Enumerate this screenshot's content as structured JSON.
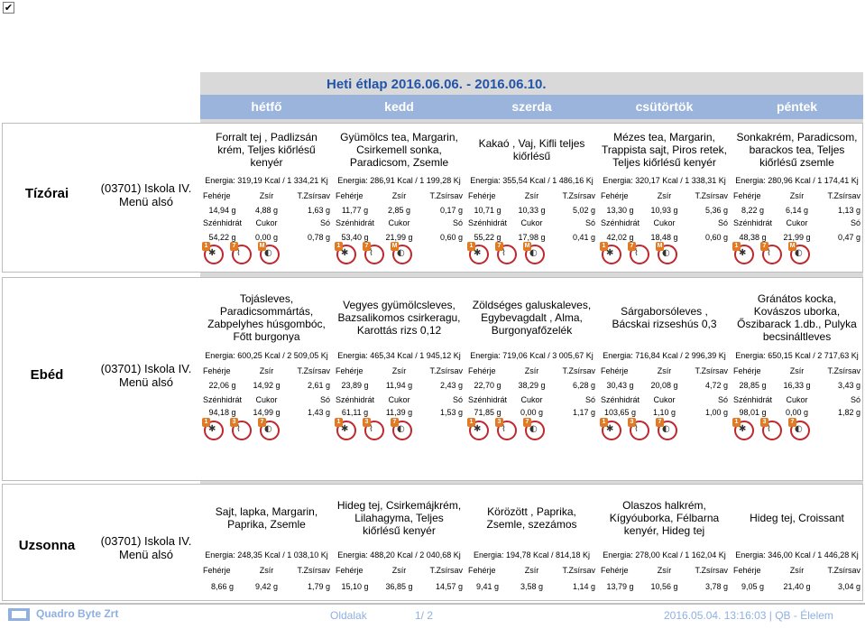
{
  "title": "Heti étlap 2016.06.06. - 2016.06.10.",
  "days": [
    "hétfő",
    "kedd",
    "szerda",
    "csütörtök",
    "péntek"
  ],
  "nutrient_headers": [
    "Fehérje",
    "Zsír",
    "T.Zsírsav",
    "Szénhidrát",
    "Cukor",
    "Só"
  ],
  "meals": [
    {
      "name": "Tízórai",
      "provider": "(03701) Iskola IV. Menü alsó",
      "menus": [
        "Forralt tej , Padlizsán krém, Teljes kiőrlésű kenyér",
        "Gyümölcs tea, Margarin, Csirkemell sonka, Paradicsom, Zsemle",
        "Kakaó , Vaj, Kifli teljes kiőrlésű",
        "Mézes tea, Margarin, Trappista sajt, Piros retek, Teljes kiőrlésű kenyér",
        "Sonkakrém, Paradicsom, barackos tea, Teljes kiőrlésű zsemle"
      ],
      "energy": [
        "Energia: 319,19 Kcal / 1 334,21 Kj",
        "Energia: 286,91 Kcal / 1 199,28 Kj",
        "Energia: 355,54 Kcal / 1 486,16 Kj",
        "Energia: 320,17 Kcal / 1 338,31 Kj",
        "Energia: 280,96 Kcal / 1 174,41 Kj"
      ],
      "values1": [
        [
          "14,94 g",
          "4,88 g",
          "1,63 g"
        ],
        [
          "11,77 g",
          "2,85 g",
          "0,17 g"
        ],
        [
          "10,71 g",
          "10,33 g",
          "5,02 g"
        ],
        [
          "13,30 g",
          "10,93 g",
          "5,36 g"
        ],
        [
          "8,22 g",
          "6,14 g",
          "1,13 g"
        ]
      ],
      "values2": [
        [
          "54,22 g",
          "0,00 g",
          "0,78 g"
        ],
        [
          "53,40 g",
          "21,99 g",
          "0,60 g"
        ],
        [
          "55,22 g",
          "17,98 g",
          "0,41 g"
        ],
        [
          "42,02 g",
          "18,48 g",
          "0,60 g"
        ],
        [
          "48,38 g",
          "21,99 g",
          "0,47 g"
        ]
      ],
      "allergens": [
        [
          "1",
          "7",
          "M"
        ],
        [
          "1",
          "7",
          "M"
        ],
        [
          "1",
          "7",
          "M"
        ],
        [
          "1",
          "7",
          "M"
        ],
        [
          "1",
          "7",
          "M"
        ]
      ]
    },
    {
      "name": "Ebéd",
      "provider": "(03701) Iskola IV. Menü alsó",
      "menus": [
        "Tojásleves, Paradicsommártás, Zabpelyhes húsgombóc, Főtt burgonya",
        "Vegyes gyümölcsleves, Bazsalikomos csirkeragu, Karottás rizs 0,12",
        "Zöldséges galuskaleves, Egybevagdalt , Alma, Burgonyafőzelék",
        "Sárgaborsóleves , Bácskai rizseshús 0,3",
        "Gránátos kocka, Kovászos uborka, Őszibarack 1.db., Pulyka becsinált­leves"
      ],
      "energy": [
        "Energia: 600,25 Kcal / 2 509,05 Kj",
        "Energia: 465,34 Kcal / 1 945,12 Kj",
        "Energia: 719,06 Kcal / 3 005,67 Kj",
        "Energia: 716,84 Kcal / 2 996,39 Kj",
        "Energia: 650,15 Kcal / 2 717,63 Kj"
      ],
      "values1": [
        [
          "22,06 g",
          "14,92 g",
          "2,61 g"
        ],
        [
          "23,89 g",
          "11,94 g",
          "2,43 g"
        ],
        [
          "22,70 g",
          "38,29 g",
          "6,28 g"
        ],
        [
          "30,43 g",
          "20,08 g",
          "4,72 g"
        ],
        [
          "28,85 g",
          "16,33 g",
          "3,43 g"
        ]
      ],
      "values2": [
        [
          "94,18 g",
          "14,99 g",
          "1,43 g"
        ],
        [
          "61,11 g",
          "11,39 g",
          "1,53 g"
        ],
        [
          "71,85 g",
          "0,00 g",
          "1,17 g"
        ],
        [
          "103,65 g",
          "1,10 g",
          "1,00 g"
        ],
        [
          "98,01 g",
          "0,00 g",
          "1,82 g"
        ]
      ],
      "allergens": [
        [
          "1",
          "3",
          "7"
        ],
        [
          "1",
          "3",
          "7"
        ],
        [
          "1",
          "3",
          "7"
        ],
        [
          "1",
          "3",
          "7"
        ],
        [
          "1",
          "3",
          "7"
        ]
      ]
    },
    {
      "name": "Uzsonna",
      "provider": "(03701) Iskola IV. Menü alsó",
      "menus": [
        "Sajt, lapka, Margarin, Paprika, Zsemle",
        "Hideg tej, Csirkemájkrém, Lilahagyma, Teljes kiőrlésű kenyér",
        "Körözött , Paprika, Zsemle, szezámos",
        "Olaszos halkrém, Kígyóuborka, Félbarna kenyér, Hideg tej",
        "Hideg tej, Croissant"
      ],
      "energy": [
        "Energia: 248,35 Kcal / 1 038,10 Kj",
        "Energia: 488,20 Kcal / 2 040,68 Kj",
        "Energia: 194,78 Kcal / 814,18 Kj",
        "Energia: 278,00 Kcal / 1 162,04 Kj",
        "Energia: 346,00 Kcal / 1 446,28 Kj"
      ],
      "values1": [
        [
          "8,66 g",
          "9,42 g",
          "1,79 g"
        ],
        [
          "15,10 g",
          "36,85 g",
          "14,57 g"
        ],
        [
          "9,41 g",
          "3,58 g",
          "1,14 g"
        ],
        [
          "13,79 g",
          "10,56 g",
          "3,78 g"
        ],
        [
          "9,05 g",
          "21,40 g",
          "3,04 g"
        ]
      ]
    }
  ],
  "footer": {
    "brand": "Quadro Byte Zrt",
    "page_label": "Oldalak",
    "page_num": "1/ 2",
    "datetime": "2016.05.04. 13:16:03 | QB - Élelem"
  },
  "colors": {
    "daybar": "#9bb4dc",
    "title": "#2255aa",
    "allergen": "#c0272d"
  }
}
